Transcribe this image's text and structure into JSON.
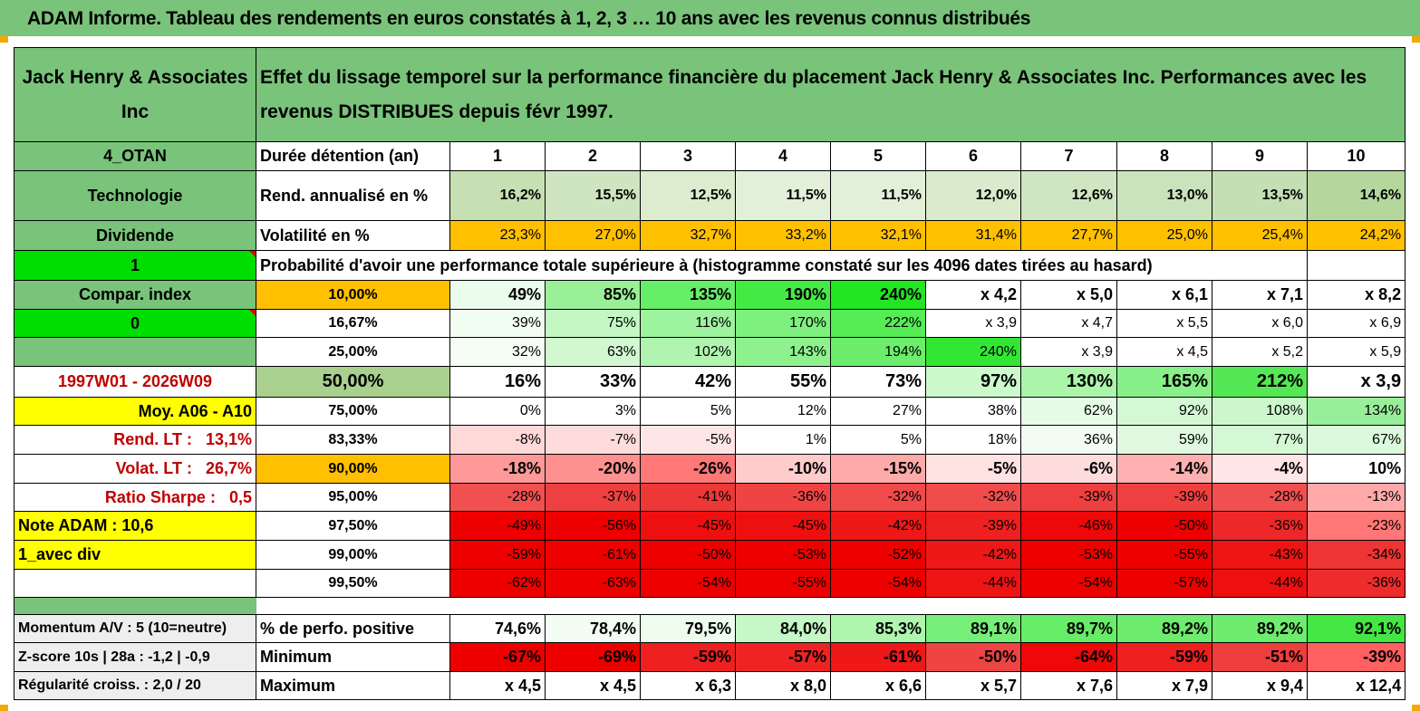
{
  "title": "ADAM Informe. Tableau des rendements en euros constatés à 1, 2, 3 … 10 ans avec les revenus connus distribués",
  "company": "Jack Henry & Associates Inc",
  "description": "Effet du lissage temporel sur la performance financière du placement Jack Henry & Associates Inc. Performances avec les revenus DISTRIBUES depuis févr 1997.",
  "side": {
    "code": "4_OTAN",
    "sector": "Technologie",
    "type": "Dividende",
    "flag1": "1",
    "compar": "Compar. index",
    "flag0": "0",
    "period": "1997W01 - 2026W09",
    "moy": "Moy. A06 - A10",
    "rend_label": "Rend. LT :",
    "rend_value": "13,1%",
    "volat_label": "Volat. LT :",
    "volat_value": "26,7%",
    "sharpe_label": "Ratio Sharpe :",
    "sharpe_value": "0,5",
    "note": "Note ADAM : 10,6",
    "avec_div": "1_avec div",
    "momentum": "Momentum A/V : 5 (10=neutre)",
    "zscore": "Z-score 10s | 28a : -1,2 | -0,9",
    "regularite": "Régularité croiss. : 2,0 / 20"
  },
  "years_label": "Durée détention (an)",
  "years": [
    "1",
    "2",
    "3",
    "4",
    "5",
    "6",
    "7",
    "8",
    "9",
    "10"
  ],
  "rend_row": {
    "label": "Rend. annualisé en %",
    "values": [
      "16,2%",
      "15,5%",
      "12,5%",
      "11,5%",
      "11,5%",
      "12,0%",
      "12,6%",
      "13,0%",
      "13,5%",
      "14,6%"
    ]
  },
  "vol_row": {
    "label": "Volatilité en %",
    "values": [
      "23,3%",
      "27,0%",
      "32,7%",
      "33,2%",
      "32,1%",
      "31,4%",
      "27,7%",
      "25,0%",
      "25,4%",
      "24,2%"
    ]
  },
  "prob_title": "Probabilité d'avoir une performance totale supérieure à (histogramme constaté sur les 4096 dates tirées au hasard)",
  "perc_rows": [
    {
      "pct": "10,00%",
      "values": [
        "49%",
        "85%",
        "135%",
        "190%",
        "240%",
        "x 4,2",
        "x 5,0",
        "x 6,1",
        "x 7,1",
        "x 8,2"
      ]
    },
    {
      "pct": "16,67%",
      "values": [
        "39%",
        "75%",
        "116%",
        "170%",
        "222%",
        "x 3,9",
        "x 4,7",
        "x 5,5",
        "x 6,0",
        "x 6,9"
      ]
    },
    {
      "pct": "25,00%",
      "values": [
        "32%",
        "63%",
        "102%",
        "143%",
        "194%",
        "240%",
        "x 3,9",
        "x 4,5",
        "x 5,2",
        "x 5,9"
      ]
    },
    {
      "pct": "50,00%",
      "values": [
        "16%",
        "33%",
        "42%",
        "55%",
        "73%",
        "97%",
        "130%",
        "165%",
        "212%",
        "x 3,9"
      ]
    },
    {
      "pct": "75,00%",
      "values": [
        "0%",
        "3%",
        "5%",
        "12%",
        "27%",
        "38%",
        "62%",
        "92%",
        "108%",
        "134%"
      ]
    },
    {
      "pct": "83,33%",
      "values": [
        "-8%",
        "-7%",
        "-5%",
        "1%",
        "5%",
        "18%",
        "36%",
        "59%",
        "77%",
        "67%"
      ]
    },
    {
      "pct": "90,00%",
      "values": [
        "-18%",
        "-20%",
        "-26%",
        "-10%",
        "-15%",
        "-5%",
        "-6%",
        "-14%",
        "-4%",
        "10%"
      ]
    },
    {
      "pct": "95,00%",
      "values": [
        "-28%",
        "-37%",
        "-41%",
        "-36%",
        "-32%",
        "-32%",
        "-39%",
        "-39%",
        "-28%",
        "-13%"
      ]
    },
    {
      "pct": "97,50%",
      "values": [
        "-49%",
        "-56%",
        "-45%",
        "-45%",
        "-42%",
        "-39%",
        "-46%",
        "-50%",
        "-36%",
        "-23%"
      ]
    },
    {
      "pct": "99,00%",
      "values": [
        "-59%",
        "-61%",
        "-50%",
        "-53%",
        "-52%",
        "-42%",
        "-53%",
        "-55%",
        "-43%",
        "-34%"
      ]
    },
    {
      "pct": "99,50%",
      "values": [
        "-62%",
        "-63%",
        "-54%",
        "-55%",
        "-54%",
        "-44%",
        "-54%",
        "-57%",
        "-44%",
        "-36%"
      ]
    }
  ],
  "perf_row": {
    "label": "% de perfo. positive",
    "values": [
      "74,6%",
      "78,4%",
      "79,5%",
      "84,0%",
      "85,3%",
      "89,1%",
      "89,7%",
      "89,2%",
      "89,2%",
      "92,1%"
    ]
  },
  "min_row": {
    "label": "Minimum",
    "values": [
      "-67%",
      "-69%",
      "-59%",
      "-57%",
      "-61%",
      "-50%",
      "-64%",
      "-59%",
      "-51%",
      "-39%"
    ]
  },
  "max_row": {
    "label": "Maximum",
    "values": [
      "x 4,5",
      "x 4,5",
      "x 6,3",
      "x 8,0",
      "x 6,6",
      "x 5,7",
      "x 7,6",
      "x 7,9",
      "x 9,4",
      "x 12,4"
    ]
  },
  "colors": {
    "rend": [
      "#c6e0b4",
      "#cfe5c1",
      "#dbeccf",
      "#e3f0d9",
      "#e3f0d9",
      "#d9ebcc",
      "#d0e6c2",
      "#cbe3bc",
      "#c4dfb3",
      "#b5d79d"
    ],
    "vol": "#ffc000",
    "perc": [
      [
        "#ecfcec",
        "#99f099",
        "#66ee66",
        "#44ea44",
        "#22e622",
        "#ffffff",
        "#ffffff",
        "#ffffff",
        "#ffffff",
        "#ffffff"
      ],
      [
        "#f2fdf2",
        "#c4f7c4",
        "#9ef39e",
        "#7df07d",
        "#55ec55",
        "#ffffff",
        "#ffffff",
        "#ffffff",
        "#ffffff",
        "#ffffff"
      ],
      [
        "#f5fdf5",
        "#d2f8d2",
        "#b0f4b0",
        "#8ef18e",
        "#6cee6c",
        "#33e633",
        "#ffffff",
        "#ffffff",
        "#ffffff",
        "#ffffff"
      ],
      [
        "#ffffff",
        "#ffffff",
        "#ffffff",
        "#ffffff",
        "#ffffff",
        "#ccfacc",
        "#aaf5aa",
        "#88f088",
        "#55e855",
        "#ffffff"
      ],
      [
        "#ffffff",
        "#ffffff",
        "#ffffff",
        "#ffffff",
        "#ffffff",
        "#ffffff",
        "#e6fbe6",
        "#d4f8d4",
        "#ccf7cc",
        "#99ee99"
      ],
      [
        "#ffd8d8",
        "#ffdcdc",
        "#ffe6e6",
        "#ffffff",
        "#ffffff",
        "#ffffff",
        "#f2fcf2",
        "#e0f9e0",
        "#d4f8d4",
        "#ddf9dd"
      ],
      [
        "#ff9999",
        "#ff9090",
        "#ff7777",
        "#ffcccc",
        "#ffaaaa",
        "#ffe2e2",
        "#ffdcdc",
        "#ffb0b0",
        "#ffe6e6",
        "#ffffff"
      ],
      [
        "#f05050",
        "#ee4040",
        "#ee3838",
        "#f04444",
        "#f04a4a",
        "#f04c4c",
        "#ee4040",
        "#ee4040",
        "#f05050",
        "#ffaaaa"
      ],
      [
        "#ee0000",
        "#ee0000",
        "#ee1010",
        "#ee1010",
        "#ee1818",
        "#ee2020",
        "#ee0808",
        "#ee0000",
        "#ee2828",
        "#ff7777"
      ],
      [
        "#ee0000",
        "#ee0000",
        "#ee0000",
        "#ee0000",
        "#ee0000",
        "#ee1818",
        "#ee0000",
        "#ee0000",
        "#ee1414",
        "#ee3434"
      ],
      [
        "#ee0000",
        "#ee0000",
        "#ee0000",
        "#ee0000",
        "#ee0000",
        "#ee1414",
        "#ee0000",
        "#ee0000",
        "#ee1010",
        "#ee2c2c"
      ]
    ],
    "perf": [
      "#ffffff",
      "#f4fdf4",
      "#eefced",
      "#c6f7c6",
      "#aef5ae",
      "#77ee77",
      "#66ec66",
      "#6eec6e",
      "#6eec6e",
      "#44e644"
    ],
    "min": [
      "#ee0000",
      "#ee0000",
      "#ee2020",
      "#ee2424",
      "#ee1818",
      "#ee4444",
      "#ee0808",
      "#ee2020",
      "#ee3e3e",
      "#ff6060"
    ]
  }
}
